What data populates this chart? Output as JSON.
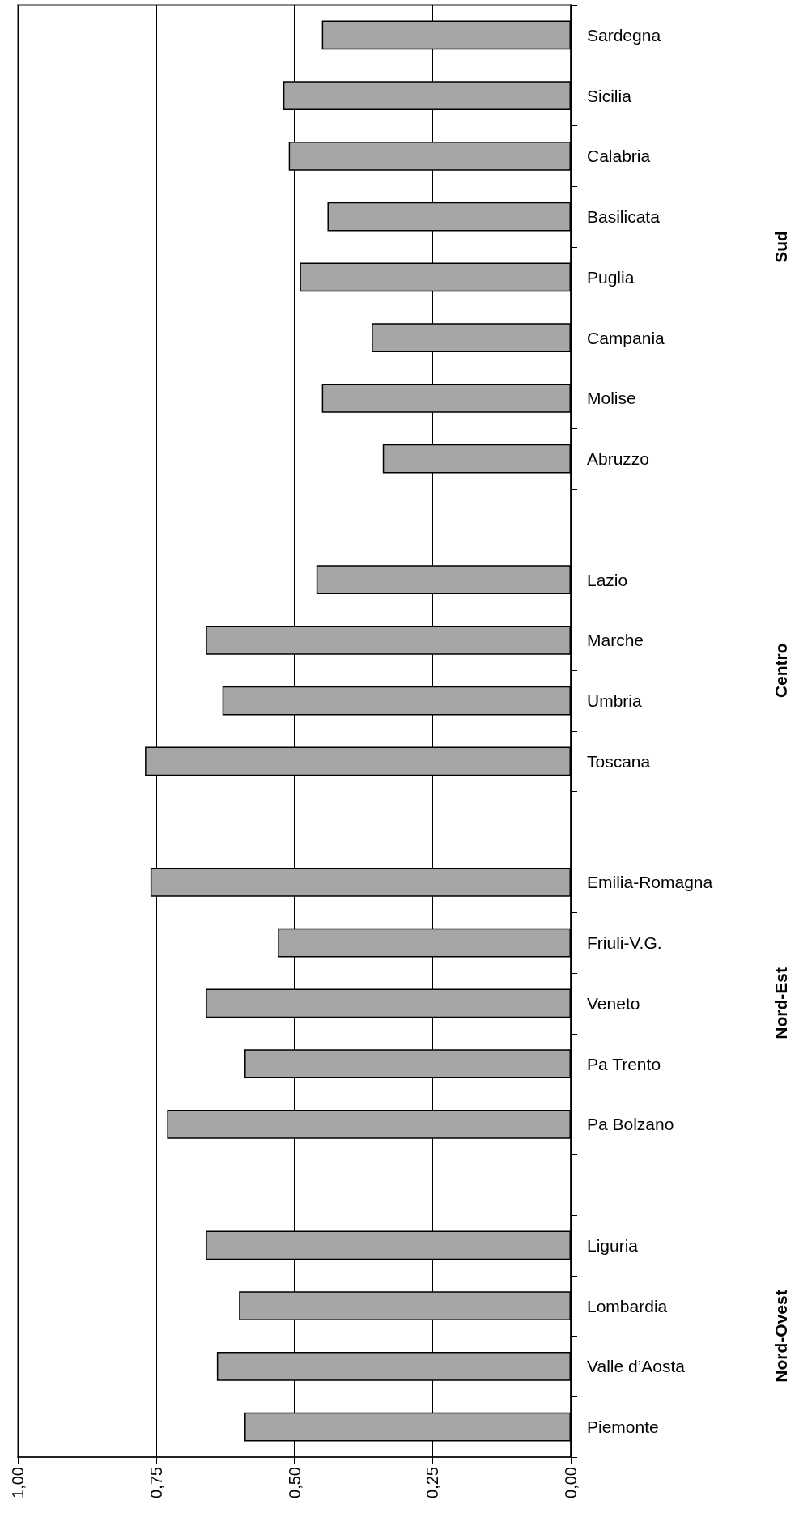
{
  "chart_data": {
    "type": "bar",
    "orientation": "horizontal",
    "categories": [
      "Sardegna",
      "Sicilia",
      "Calabria",
      "Basilicata",
      "Puglia",
      "Campania",
      "Molise",
      "Abruzzo",
      null,
      "Lazio",
      "Marche",
      "Umbria",
      "Toscana",
      null,
      "Emilia-Romagna",
      "Friuli-V.G.",
      "Veneto",
      "Pa Trento",
      "Pa Bolzano",
      null,
      "Liguria",
      "Lombardia",
      "Valle d’Aosta",
      "Piemonte"
    ],
    "values": [
      0.45,
      0.52,
      0.51,
      0.44,
      0.49,
      0.36,
      0.45,
      0.34,
      null,
      0.46,
      0.66,
      0.63,
      0.77,
      null,
      0.76,
      0.53,
      0.66,
      0.59,
      0.73,
      null,
      0.66,
      0.6,
      0.64,
      0.59
    ],
    "color": "#a6a6a6",
    "xlim": [
      1,
      0
    ],
    "xticks": [
      {
        "value": 1,
        "label": "1,00"
      },
      {
        "value": 0.75,
        "label": "0,75"
      },
      {
        "value": 0.5,
        "label": "0,50"
      },
      {
        "value": 0.25,
        "label": "0,25"
      },
      {
        "value": 0,
        "label": "0,00"
      }
    ],
    "grid": "x",
    "annotations": [
      "Sud",
      "Centro",
      "Nord-Est",
      "Nord-Ovest"
    ]
  }
}
